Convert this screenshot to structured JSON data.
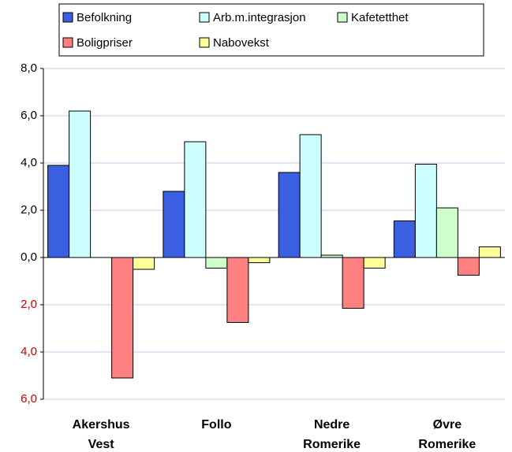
{
  "chart_data": {
    "type": "bar",
    "categories": [
      "Akershus Vest",
      "Follo",
      "Nedre Romerike",
      "Øvre Romerike"
    ],
    "series": [
      {
        "name": "Befolkning",
        "color": "#3a5fe0",
        "values": [
          3.9,
          2.8,
          3.6,
          1.55
        ]
      },
      {
        "name": "Arb.m.integrasjon",
        "color": "#ccffff",
        "values": [
          6.2,
          4.9,
          5.2,
          3.95
        ]
      },
      {
        "name": "Kafetetthet",
        "color": "#ccffcc",
        "values": [
          0,
          -0.45,
          0.1,
          2.1
        ]
      },
      {
        "name": "Boligpriser",
        "color": "#ff8080",
        "values": [
          -5.1,
          -2.75,
          -2.15,
          -0.75
        ]
      },
      {
        "name": "Nabovekst",
        "color": "#ffff99",
        "values": [
          -0.5,
          -0.22,
          -0.45,
          0.45
        ]
      }
    ],
    "ylim": [
      -6,
      8
    ],
    "yticks": [
      {
        "value": -6,
        "label": "6,0"
      },
      {
        "value": -4,
        "label": "4,0"
      },
      {
        "value": -2,
        "label": "2,0"
      },
      {
        "value": 0,
        "label": "0,0"
      },
      {
        "value": 2,
        "label": "2,0"
      },
      {
        "value": 4,
        "label": "4,0"
      },
      {
        "value": 6,
        "label": "6,0"
      },
      {
        "value": 8,
        "label": "8,0"
      }
    ],
    "negative_tick_color": "#cc0000",
    "grid": true
  }
}
